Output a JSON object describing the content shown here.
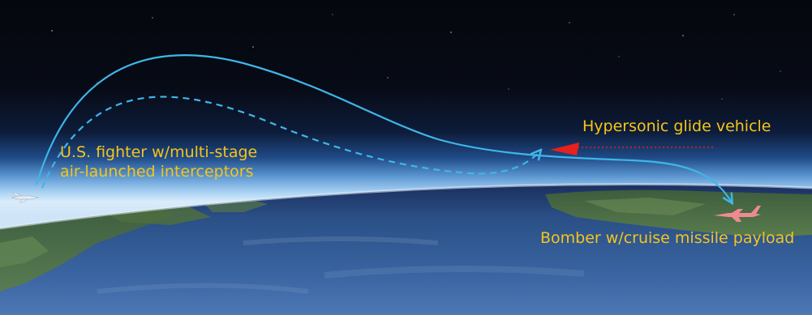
{
  "labels": {
    "fighter_line1": "U.S. fighter w/multi-stage",
    "fighter_line2": "air-launched interceptors",
    "glide_vehicle": "Hypersonic glide vehicle",
    "bomber": "Bomber w/cruise missile payload"
  },
  "colors": {
    "label_text": "#f5c518",
    "trajectory": "#3fb6e8",
    "glide_vehicle": "#e8201e",
    "glide_trail": "#e8201e",
    "bomber": "#f08a92",
    "fighter": "#e6ecf2",
    "space": "#05070d",
    "atmosphere_glow": "#a9d2f3",
    "ocean": "#2a4f86",
    "land": "#4c6b3e"
  },
  "icons": {
    "fighter": "fighter-jet-icon",
    "bomber": "bomber-aircraft-icon",
    "glide_vehicle": "glide-vehicle-icon"
  }
}
